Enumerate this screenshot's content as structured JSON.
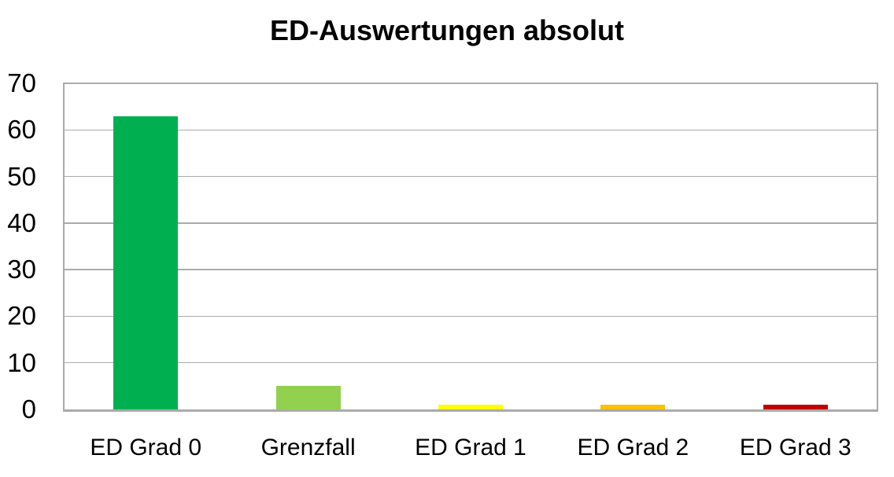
{
  "page": {
    "background": "#ffffff"
  },
  "chart": {
    "title": "ED-Auswertungen absolut"
  },
  "chart_data": {
    "type": "bar",
    "title": "ED-Auswertungen absolut",
    "categories": [
      "ED Grad 0",
      "Grenzfall",
      "ED Grad 1",
      "ED Grad 2",
      "ED Grad 3"
    ],
    "values": [
      63,
      5,
      1,
      1,
      1
    ],
    "bar_colors": [
      "#00B050",
      "#92D050",
      "#FFFF00",
      "#FFC000",
      "#C00000"
    ],
    "xlabel": "",
    "ylabel": "",
    "ylim": [
      0,
      70
    ],
    "yticks": [
      0,
      10,
      20,
      30,
      40,
      50,
      60,
      70
    ],
    "grid": true,
    "legend": false,
    "colors": {
      "title_text": "#000000",
      "axis_text": "#000000",
      "gridline": "#ABABAB",
      "plot_border": "#ABABAB",
      "axis_line": "#ABABAB",
      "background": "#ffffff"
    }
  }
}
